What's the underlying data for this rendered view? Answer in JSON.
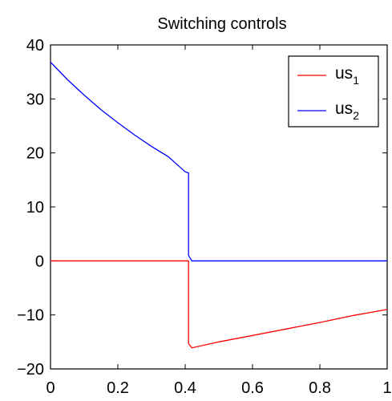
{
  "chart_data": {
    "type": "line",
    "title": "Switching controls",
    "xlabel": "",
    "ylabel": "",
    "xlim": [
      0,
      1
    ],
    "ylim": [
      -20,
      40
    ],
    "xticks": [
      0,
      0.2,
      0.4,
      0.6,
      0.8,
      1
    ],
    "xtick_labels": [
      "0",
      "0.2",
      "0.4",
      "0.6",
      "0.8",
      "1"
    ],
    "yticks": [
      -20,
      -10,
      0,
      10,
      20,
      30,
      40
    ],
    "ytick_labels": [
      "−20",
      "−10",
      "0",
      "10",
      "20",
      "30",
      "40"
    ],
    "grid": false,
    "legend_position": "top-right",
    "series": [
      {
        "name": "us1",
        "legend_base": "us",
        "legend_sub": "1",
        "color": "#ff0000",
        "x": [
          0,
          0.1,
          0.2,
          0.3,
          0.41,
          0.41,
          0.42,
          0.5,
          0.6,
          0.7,
          0.8,
          0.9,
          1.0
        ],
        "y": [
          0,
          0,
          0,
          0,
          0,
          -15.3,
          -16.1,
          -15.0,
          -13.8,
          -12.6,
          -11.4,
          -10.1,
          -9.0
        ]
      },
      {
        "name": "us2",
        "legend_base": "us",
        "legend_sub": "2",
        "color": "#0000ff",
        "x": [
          0,
          0.05,
          0.1,
          0.15,
          0.2,
          0.25,
          0.3,
          0.35,
          0.4,
          0.41,
          0.41,
          0.42,
          0.6,
          0.8,
          1.0
        ],
        "y": [
          36.8,
          33.6,
          30.7,
          28.0,
          25.6,
          23.3,
          21.2,
          19.3,
          16.5,
          16.3,
          1.0,
          0,
          0,
          0,
          0
        ]
      }
    ]
  }
}
